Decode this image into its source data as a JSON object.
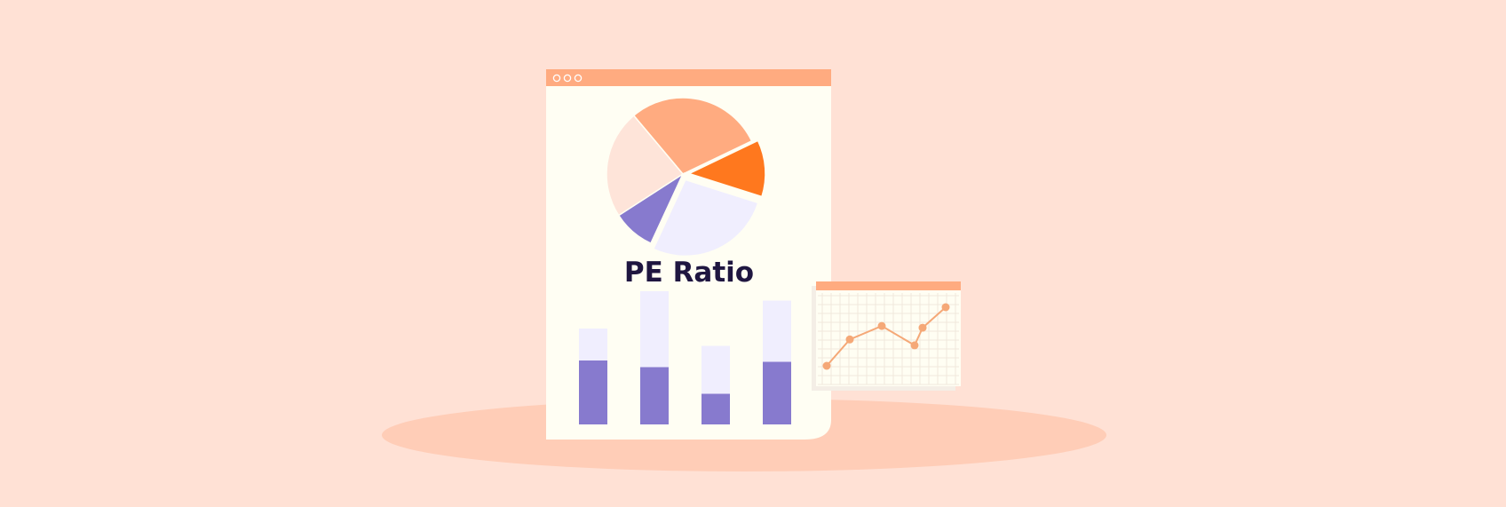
{
  "title": "PE Ratio",
  "colors": {
    "background": "#ffe1d5",
    "shadow": "#ffcdb7",
    "card": "#fffef3",
    "card_header": "#ffab80",
    "accent_orange": "#ff781e",
    "light_orange": "#ffab80",
    "purple": "#877ace",
    "lavender": "#f0eefe",
    "pale_pink": "#fee4d9",
    "line": "#f5a877",
    "grid": "#f1e8dc"
  },
  "window_controls": [
    "dot-icon",
    "dot-icon",
    "dot-icon"
  ],
  "pie_slices": [
    {
      "name": "light-orange-slice",
      "value": 29,
      "color": "light_orange"
    },
    {
      "name": "orange-slice",
      "value": 12,
      "color": "accent_orange",
      "exploded": true
    },
    {
      "name": "lavender-slice",
      "value": 27,
      "color": "lavender",
      "exploded": true
    },
    {
      "name": "purple-slice",
      "value": 9,
      "color": "purple"
    },
    {
      "name": "pale-pink-slice",
      "value": 23,
      "color": "pale_pink"
    }
  ],
  "bars": [
    {
      "total": 0.72,
      "filled": 0.48
    },
    {
      "total": 1.0,
      "filled": 0.43
    },
    {
      "total": 0.59,
      "filled": 0.23
    },
    {
      "total": 0.93,
      "filled": 0.47
    }
  ],
  "line_points": [
    0.0,
    0.45,
    0.68,
    0.35,
    0.65,
    1.0
  ]
}
